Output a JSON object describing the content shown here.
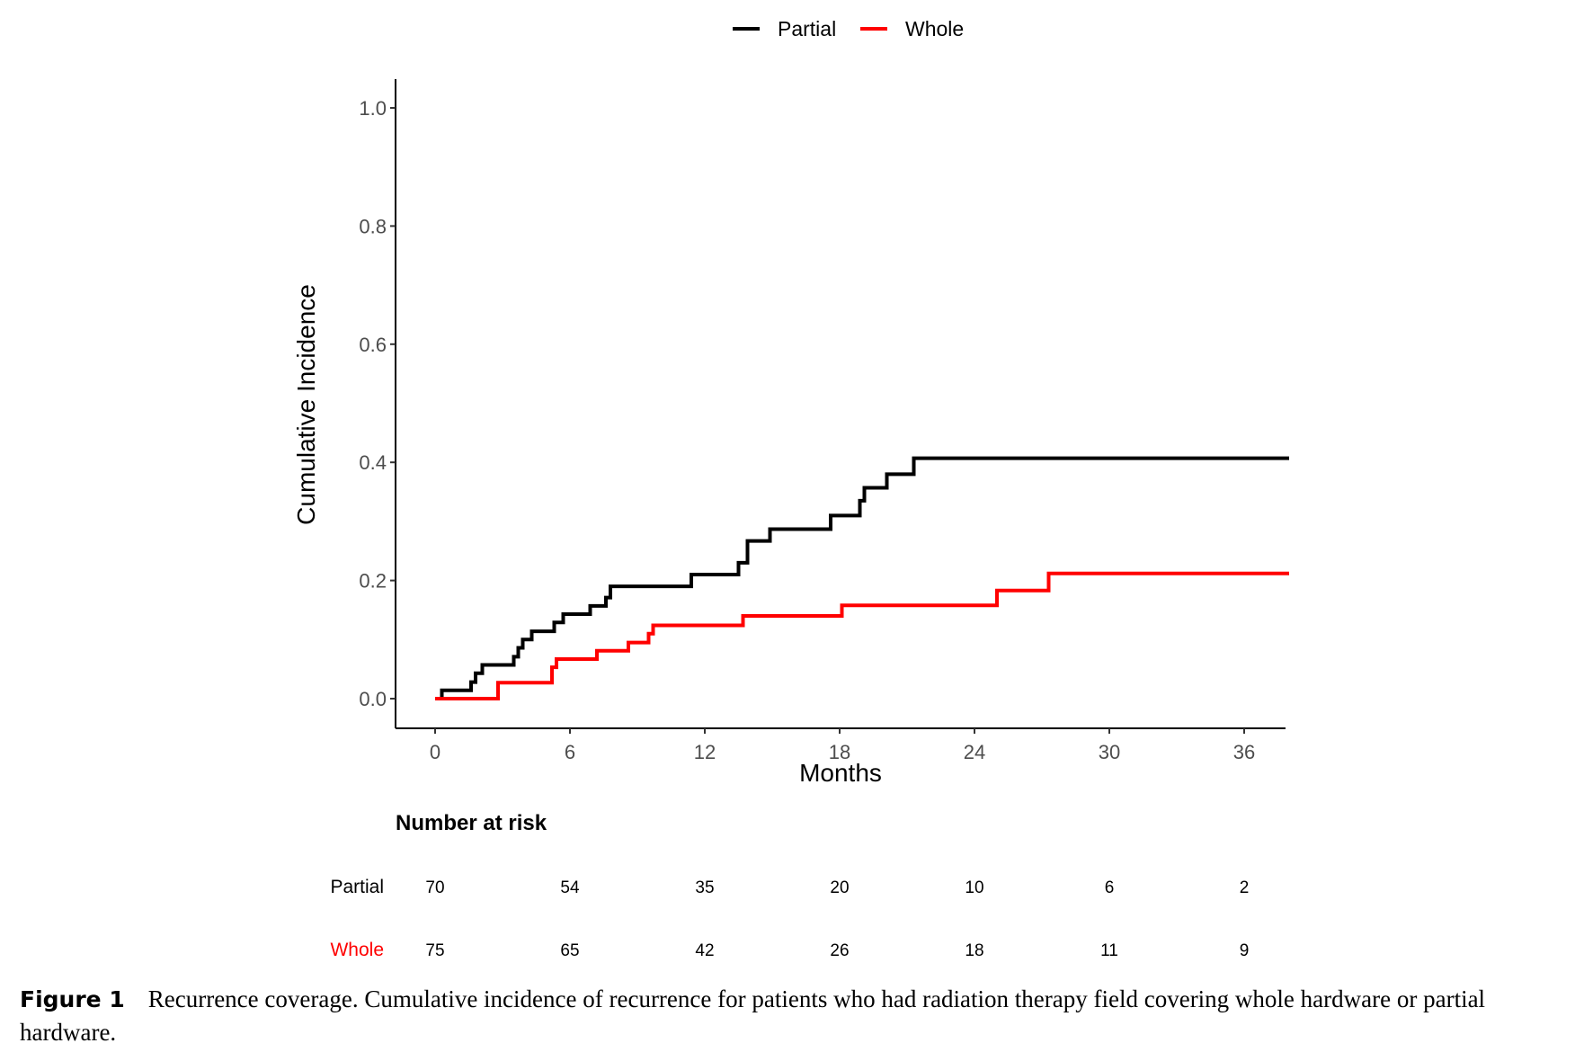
{
  "chart_data": {
    "type": "line",
    "step": true,
    "xlabel": "Months",
    "ylabel": "Cumulative Incidence",
    "xlim": [
      -1,
      38
    ],
    "ylim": [
      0,
      1.05
    ],
    "x_ticks": [
      0,
      6,
      12,
      18,
      24,
      30,
      36
    ],
    "y_ticks": [
      0.0,
      0.2,
      0.4,
      0.6,
      0.8,
      1.0
    ],
    "y_tick_labels": [
      "0.0",
      "0.2",
      "0.4",
      "0.6",
      "0.8",
      "1.0"
    ],
    "legend_position": "top",
    "grid": false,
    "series": [
      {
        "name": "Partial",
        "color": "#000000",
        "x": [
          0,
          0.3,
          1.6,
          1.8,
          2.1,
          3.5,
          3.7,
          3.9,
          4.3,
          5.3,
          5.7,
          6.9,
          7.6,
          7.8,
          11.4,
          13.5,
          13.9,
          14.9,
          17.6,
          18.9,
          19.1,
          20.1,
          21.3,
          38
        ],
        "y": [
          0.0,
          0.014,
          0.028,
          0.043,
          0.057,
          0.071,
          0.086,
          0.1,
          0.114,
          0.129,
          0.143,
          0.157,
          0.171,
          0.19,
          0.21,
          0.23,
          0.267,
          0.287,
          0.31,
          0.335,
          0.357,
          0.38,
          0.407,
          0.407
        ]
      },
      {
        "name": "Whole",
        "color": "#ff0000",
        "x": [
          0,
          2.8,
          5.2,
          5.4,
          7.2,
          8.6,
          9.5,
          9.7,
          13.7,
          18.1,
          25.0,
          27.3,
          38
        ],
        "y": [
          0.0,
          0.027,
          0.053,
          0.067,
          0.081,
          0.095,
          0.11,
          0.124,
          0.14,
          0.158,
          0.183,
          0.212,
          0.212
        ]
      }
    ],
    "risk_table": {
      "title": "Number at risk",
      "time_points": [
        0,
        6,
        12,
        18,
        24,
        30,
        36
      ],
      "rows": [
        {
          "group": "Partial",
          "color": "#000000",
          "values": [
            "70",
            "54",
            "35",
            "20",
            "10",
            "6",
            "2"
          ]
        },
        {
          "group": "Whole",
          "color": "#ff0000",
          "values": [
            "75",
            "65",
            "42",
            "26",
            "18",
            "11",
            "9"
          ]
        }
      ]
    }
  },
  "caption": {
    "label": "Figure 1",
    "text": "Recurrence coverage. Cumulative incidence of recurrence for patients who had radiation therapy field covering whole hardware or partial hardware."
  }
}
